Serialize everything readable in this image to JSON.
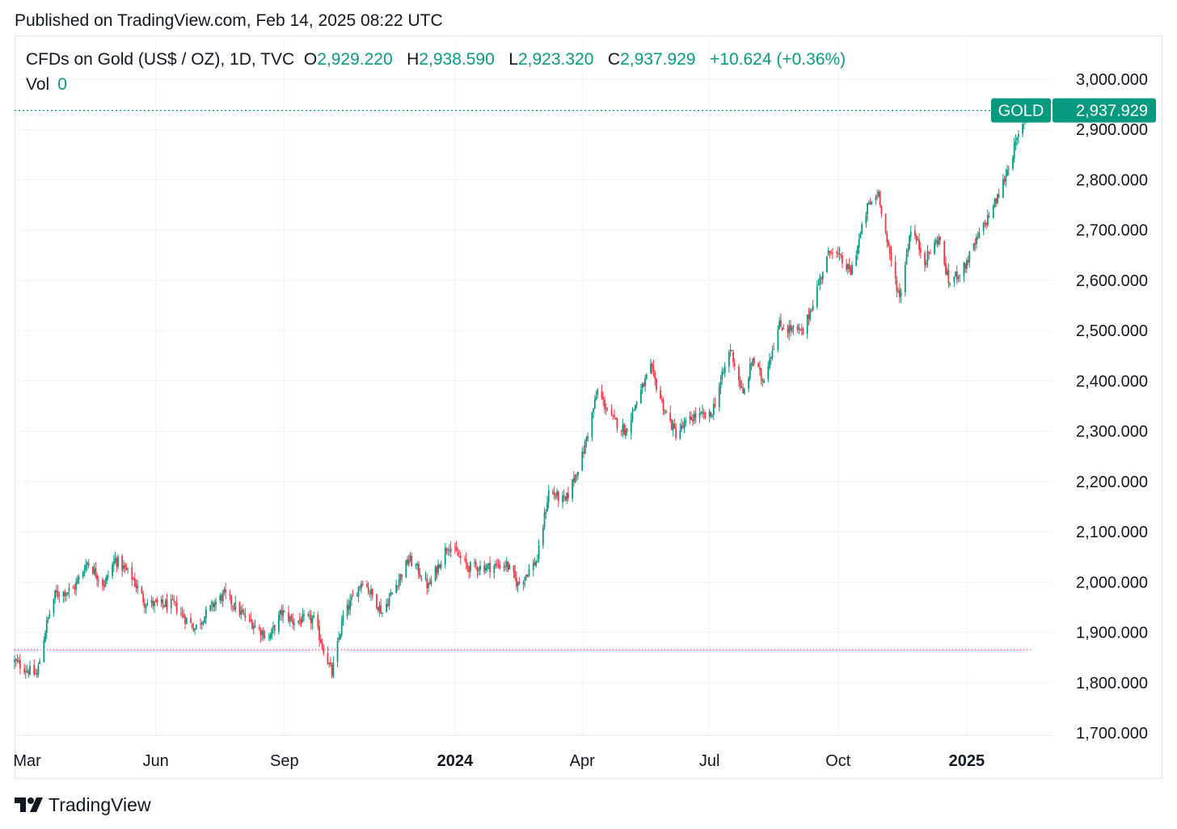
{
  "header": {
    "published": "Published on TradingView.com, Feb 14, 2025 08:22 UTC"
  },
  "legend": {
    "symbol": "CFDs on Gold (US$ / OZ), 1D, TVC",
    "open_key": "O",
    "open_value": "2,929.220",
    "high_key": "H",
    "high_value": "2,938.590",
    "low_key": "L",
    "low_value": "2,923.320",
    "close_key": "C",
    "close_value": "2,937.929",
    "change": "+10.624 (+0.36%)",
    "vol_key": "Vol",
    "vol_value": "0"
  },
  "price_tag": {
    "ticker": "GOLD",
    "price": "2,937.929",
    "price_value": 2937.929
  },
  "footer": {
    "brand": "TradingView"
  },
  "colors": {
    "up": "#089981",
    "down": "#f23645",
    "grid": "#f0f3fa",
    "tag": "#089981"
  },
  "chart_data": {
    "type": "candlestick",
    "x_range": [
      "2023-02-20",
      "2025-02-14"
    ],
    "ylim": [
      1700,
      3000
    ],
    "y_ticks": [
      "1,700.000",
      "1,800.000",
      "1,900.000",
      "2,000.000",
      "2,100.000",
      "2,200.000",
      "2,300.000",
      "2,400.000",
      "2,500.000",
      "2,600.000",
      "2,700.000",
      "2,800.000",
      "2,900.000",
      "3,000.000"
    ],
    "y_tick_values": [
      1700,
      1800,
      1900,
      2000,
      2100,
      2200,
      2300,
      2400,
      2500,
      2600,
      2700,
      2800,
      2900,
      3000
    ],
    "x_ticks": [
      {
        "label": "Mar",
        "date": "2023-03-01",
        "bold": false
      },
      {
        "label": "Jun",
        "date": "2023-06-01",
        "bold": false
      },
      {
        "label": "Sep",
        "date": "2023-09-01",
        "bold": false
      },
      {
        "label": "2024",
        "date": "2024-01-01",
        "bold": true
      },
      {
        "label": "Apr",
        "date": "2024-04-01",
        "bold": false
      },
      {
        "label": "Jul",
        "date": "2024-07-01",
        "bold": false
      },
      {
        "label": "Oct",
        "date": "2024-10-01",
        "bold": false
      },
      {
        "label": "2025",
        "date": "2025-01-01",
        "bold": true
      }
    ],
    "reference_line": 1865,
    "last_price": 2937.929,
    "close_path": [
      {
        "date": "2023-02-20",
        "close": 1842
      },
      {
        "date": "2023-02-28",
        "close": 1827
      },
      {
        "date": "2023-03-08",
        "close": 1815
      },
      {
        "date": "2023-03-15",
        "close": 1918
      },
      {
        "date": "2023-03-21",
        "close": 1975
      },
      {
        "date": "2023-04-03",
        "close": 1985
      },
      {
        "date": "2023-04-13",
        "close": 2040
      },
      {
        "date": "2023-04-25",
        "close": 1995
      },
      {
        "date": "2023-05-03",
        "close": 2045
      },
      {
        "date": "2023-05-15",
        "close": 2010
      },
      {
        "date": "2023-05-24",
        "close": 1960
      },
      {
        "date": "2023-06-02",
        "close": 1955
      },
      {
        "date": "2023-06-14",
        "close": 1955
      },
      {
        "date": "2023-06-23",
        "close": 1925
      },
      {
        "date": "2023-06-29",
        "close": 1908
      },
      {
        "date": "2023-07-13",
        "close": 1958
      },
      {
        "date": "2023-07-20",
        "close": 1975
      },
      {
        "date": "2023-08-02",
        "close": 1935
      },
      {
        "date": "2023-08-21",
        "close": 1888
      },
      {
        "date": "2023-08-30",
        "close": 1940
      },
      {
        "date": "2023-09-07",
        "close": 1922
      },
      {
        "date": "2023-09-15",
        "close": 1925
      },
      {
        "date": "2023-09-22",
        "close": 1925
      },
      {
        "date": "2023-10-05",
        "close": 1818
      },
      {
        "date": "2023-10-13",
        "close": 1930
      },
      {
        "date": "2023-10-27",
        "close": 2005
      },
      {
        "date": "2023-11-10",
        "close": 1940
      },
      {
        "date": "2023-11-29",
        "close": 2045
      },
      {
        "date": "2023-12-04",
        "close": 2030
      },
      {
        "date": "2023-12-13",
        "close": 1990
      },
      {
        "date": "2023-12-27",
        "close": 2075
      },
      {
        "date": "2024-01-10",
        "close": 2030
      },
      {
        "date": "2024-01-24",
        "close": 2030
      },
      {
        "date": "2024-02-07",
        "close": 2035
      },
      {
        "date": "2024-02-15",
        "close": 1995
      },
      {
        "date": "2024-02-29",
        "close": 2045
      },
      {
        "date": "2024-03-08",
        "close": 2180
      },
      {
        "date": "2024-03-20",
        "close": 2160
      },
      {
        "date": "2024-04-01",
        "close": 2250
      },
      {
        "date": "2024-04-12",
        "close": 2380
      },
      {
        "date": "2024-04-22",
        "close": 2325
      },
      {
        "date": "2024-05-02",
        "close": 2300
      },
      {
        "date": "2024-05-10",
        "close": 2360
      },
      {
        "date": "2024-05-20",
        "close": 2425
      },
      {
        "date": "2024-05-30",
        "close": 2340
      },
      {
        "date": "2024-06-07",
        "close": 2295
      },
      {
        "date": "2024-06-20",
        "close": 2330
      },
      {
        "date": "2024-07-02",
        "close": 2330
      },
      {
        "date": "2024-07-16",
        "close": 2465
      },
      {
        "date": "2024-07-25",
        "close": 2370
      },
      {
        "date": "2024-08-01",
        "close": 2445
      },
      {
        "date": "2024-08-08",
        "close": 2400
      },
      {
        "date": "2024-08-20",
        "close": 2510
      },
      {
        "date": "2024-09-06",
        "close": 2495
      },
      {
        "date": "2024-09-20",
        "close": 2620
      },
      {
        "date": "2024-09-26",
        "close": 2665
      },
      {
        "date": "2024-10-10",
        "close": 2615
      },
      {
        "date": "2024-10-22",
        "close": 2745
      },
      {
        "date": "2024-10-30",
        "close": 2775
      },
      {
        "date": "2024-11-06",
        "close": 2660
      },
      {
        "date": "2024-11-14",
        "close": 2565
      },
      {
        "date": "2024-11-22",
        "close": 2705
      },
      {
        "date": "2024-12-02",
        "close": 2640
      },
      {
        "date": "2024-12-12",
        "close": 2685
      },
      {
        "date": "2024-12-19",
        "close": 2595
      },
      {
        "date": "2024-12-30",
        "close": 2625
      },
      {
        "date": "2025-01-10",
        "close": 2690
      },
      {
        "date": "2025-01-24",
        "close": 2770
      },
      {
        "date": "2025-02-05",
        "close": 2870
      },
      {
        "date": "2025-02-14",
        "close": 2938
      }
    ]
  }
}
